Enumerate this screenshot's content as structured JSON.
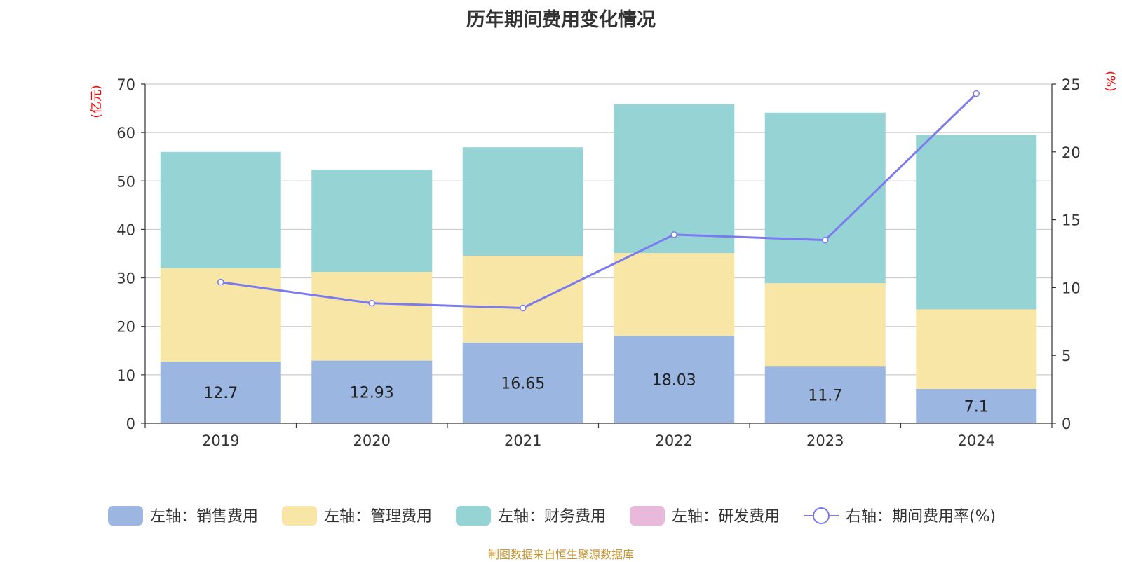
{
  "chart_data": {
    "type": "bar",
    "title": "历年期间费用变化情况",
    "categories": [
      "2019",
      "2020",
      "2021",
      "2022",
      "2023",
      "2024"
    ],
    "left_axis": {
      "label": "(亿元)",
      "ylim": [
        0,
        70
      ],
      "ticks": [
        0,
        10,
        20,
        30,
        40,
        50,
        60,
        70
      ]
    },
    "right_axis": {
      "label": "(%)",
      "ylim": [
        0,
        25
      ],
      "ticks": [
        0,
        5,
        10,
        15,
        20,
        25
      ]
    },
    "series": [
      {
        "name": "左轴：销售费用",
        "type": "bar",
        "stack": "cost",
        "axis": "left",
        "color": "#9bb7e1",
        "values": [
          12.7,
          12.93,
          16.65,
          18.03,
          11.7,
          7.1
        ],
        "show_labels": true
      },
      {
        "name": "左轴：管理费用",
        "type": "bar",
        "stack": "cost",
        "axis": "left",
        "color": "#f8e6a7",
        "values": [
          19.3,
          18.3,
          17.9,
          17.1,
          17.2,
          16.4
        ]
      },
      {
        "name": "左轴：财务费用",
        "type": "bar",
        "stack": "cost",
        "axis": "left",
        "color": "#96d3d4",
        "values": [
          24.0,
          21.1,
          22.4,
          30.7,
          35.2,
          36.0
        ]
      },
      {
        "name": "左轴：研发费用",
        "type": "bar",
        "stack": "cost",
        "axis": "left",
        "color": "#e8b9da",
        "values": [
          0,
          0,
          0,
          0,
          0,
          0
        ]
      },
      {
        "name": "右轴：期间费用率(%)",
        "type": "line",
        "axis": "right",
        "color": "#7b7bef",
        "values": [
          10.4,
          8.85,
          8.5,
          13.9,
          13.5,
          24.3
        ]
      }
    ],
    "grid": true,
    "legend_position": "bottom"
  },
  "source_note": "制图数据来自恒生聚源数据库",
  "colors": {
    "title": "#333333",
    "axis_label": "#ff0000",
    "tick": "#333333",
    "grid": "#cccccc",
    "source": "#c8922e"
  }
}
